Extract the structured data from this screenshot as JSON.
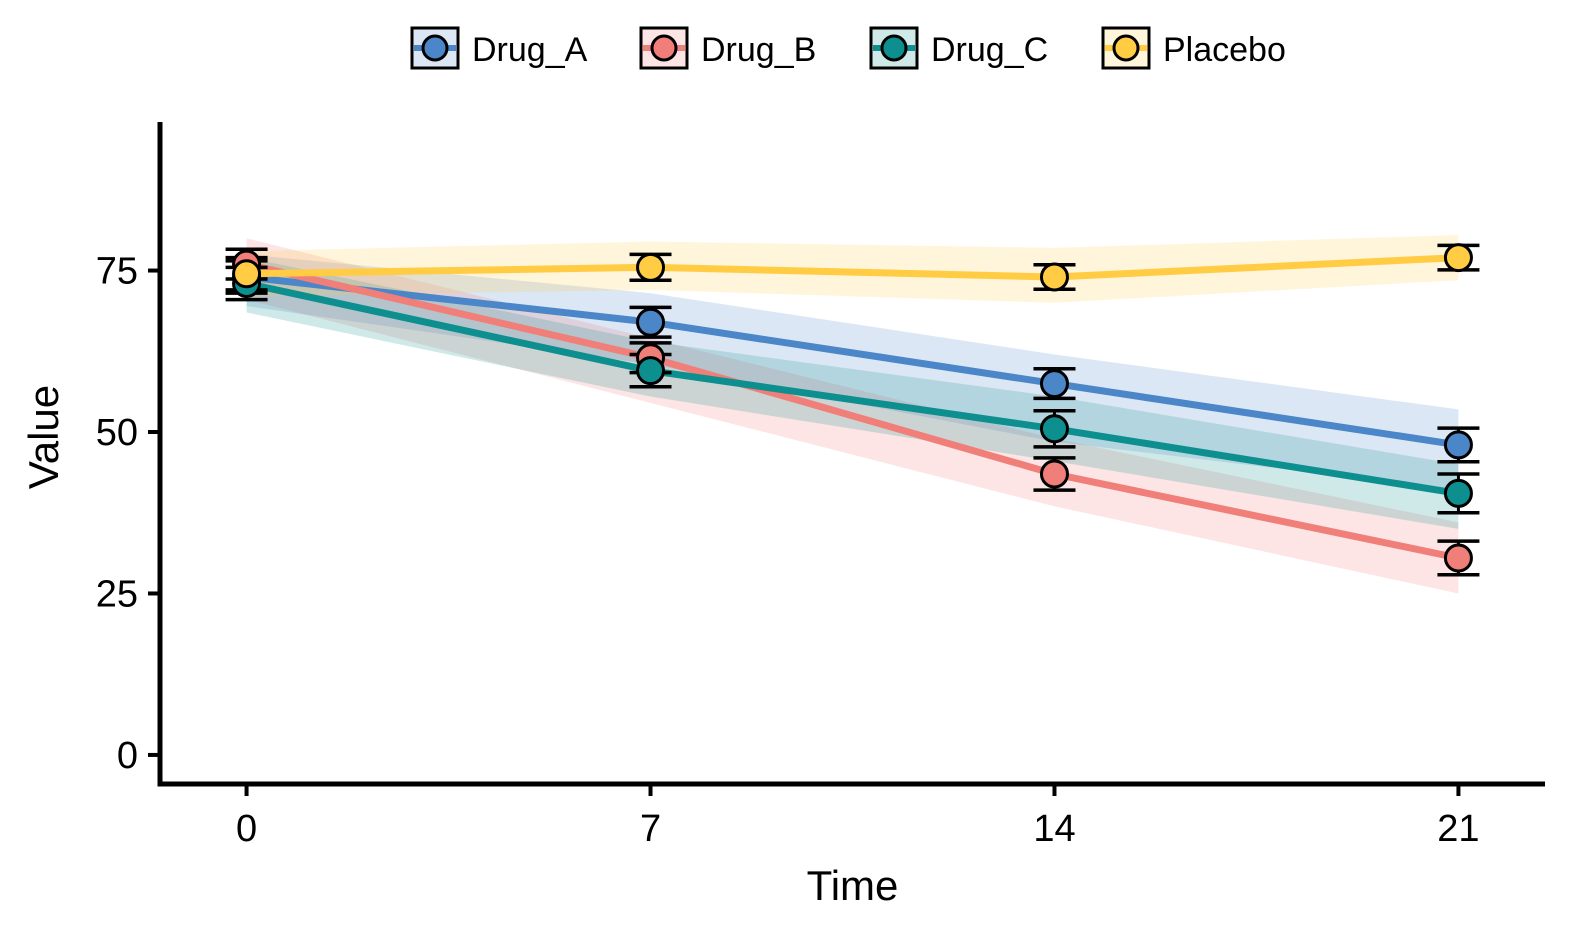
{
  "chart_data": {
    "type": "line",
    "xlabel": "Time",
    "ylabel": "Value",
    "x": [
      0,
      7,
      14,
      21
    ],
    "xticks": [
      0,
      7,
      14,
      21
    ],
    "yticks": [
      0,
      25,
      50,
      75
    ],
    "xlim": [
      -1.5,
      22.5
    ],
    "ylim": [
      -4.5,
      98
    ],
    "grid": false,
    "legend_position": "top",
    "series": [
      {
        "name": "Drug_A",
        "color": "#4A86C8",
        "values": [
          74.0,
          67.0,
          57.5,
          48.0
        ],
        "error": [
          2.5,
          2.3,
          2.3,
          2.6
        ],
        "band_low": [
          69.5,
          60.5,
          48.5,
          41.0
        ],
        "band_high": [
          77.5,
          71.5,
          62.0,
          53.5
        ]
      },
      {
        "name": "Drug_B",
        "color": "#EF7F78",
        "values": [
          76.0,
          61.5,
          43.5,
          30.5
        ],
        "error": [
          2.3,
          2.3,
          2.5,
          2.6
        ],
        "band_low": [
          70.5,
          54.5,
          38.5,
          25.0
        ],
        "band_high": [
          80.0,
          64.5,
          49.0,
          36.0
        ]
      },
      {
        "name": "Drug_C",
        "color": "#0E8F8F",
        "values": [
          73.0,
          59.5,
          50.5,
          40.5
        ],
        "error": [
          2.5,
          2.5,
          2.8,
          3.0
        ],
        "band_low": [
          68.5,
          55.5,
          45.5,
          35.0
        ],
        "band_high": [
          77.0,
          64.0,
          55.5,
          45.0
        ]
      },
      {
        "name": "Placebo",
        "color": "#FFCC44",
        "values": [
          74.5,
          75.5,
          74.0,
          77.0
        ],
        "error": [
          2.5,
          2.0,
          1.9,
          1.9
        ],
        "band_low": [
          71.0,
          72.0,
          70.0,
          73.5
        ],
        "band_high": [
          78.0,
          79.5,
          78.5,
          80.5
        ]
      }
    ]
  }
}
